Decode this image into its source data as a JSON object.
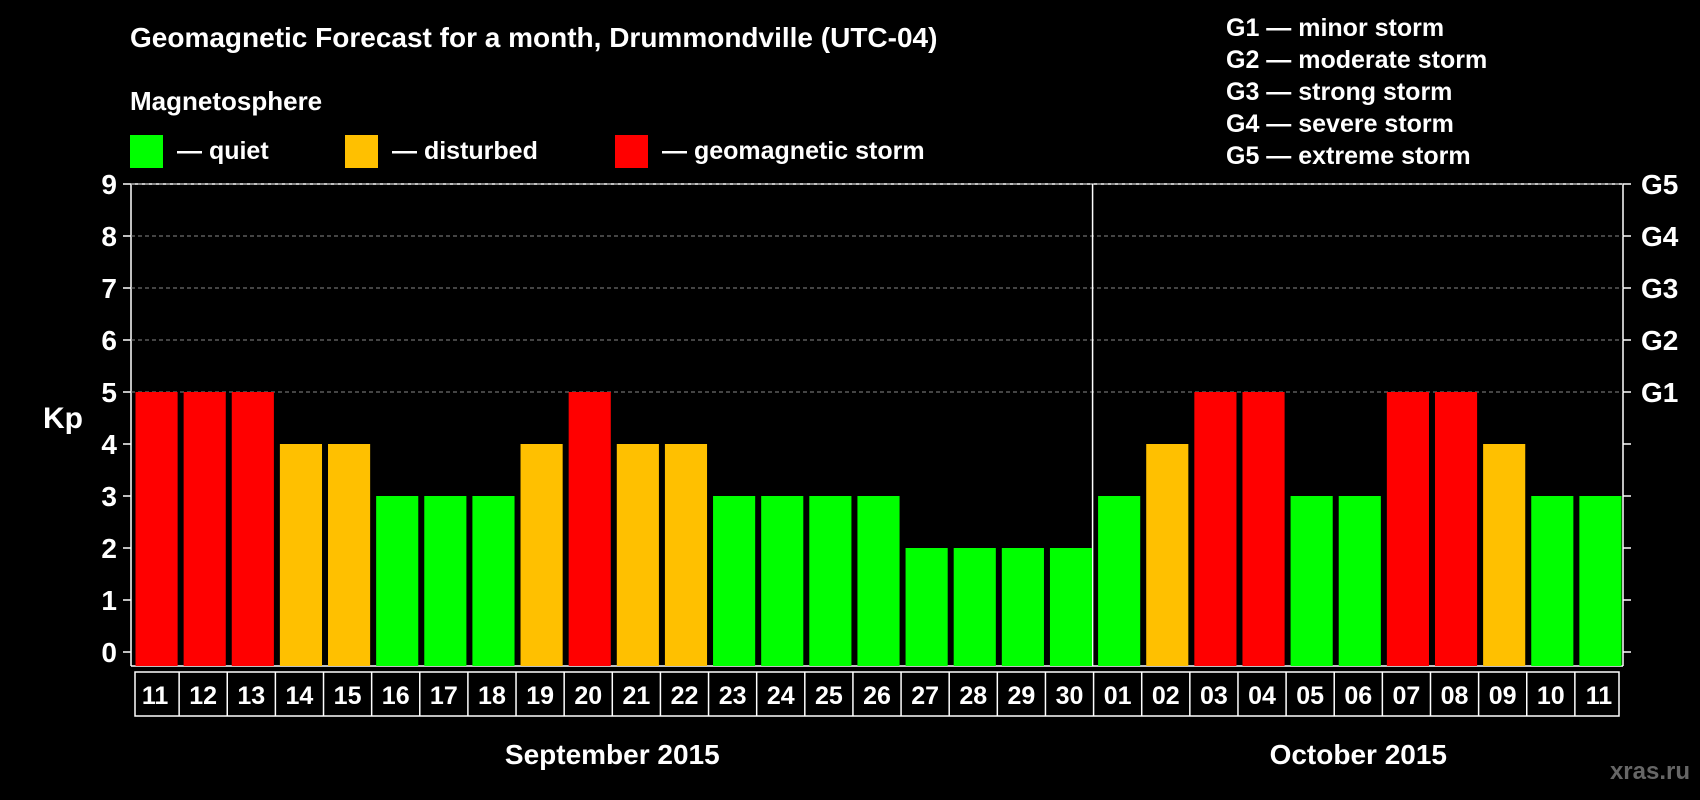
{
  "title": "Geomagnetic Forecast for a month, Drummondville (UTC-04)",
  "magnetosphere_label": "Magnetosphere",
  "legend": [
    {
      "label": "— quiet",
      "color": "#00ff00"
    },
    {
      "label": "— disturbed",
      "color": "#ffc000"
    },
    {
      "label": "— geomagnetic storm",
      "color": "#ff0000"
    }
  ],
  "g_scale": [
    "G1 — minor storm",
    "G2 — moderate storm",
    "G3 — strong storm",
    "G4 — severe storm",
    "G5 — extreme storm"
  ],
  "watermark": "xras.ru",
  "chart_data": {
    "type": "bar",
    "ylabel": "Kp",
    "ylim": [
      0,
      9
    ],
    "yticks": [
      0,
      1,
      2,
      3,
      4,
      5,
      6,
      7,
      8,
      9
    ],
    "right_axis_labels": [
      {
        "kp": 5,
        "label": "G1"
      },
      {
        "kp": 6,
        "label": "G2"
      },
      {
        "kp": 7,
        "label": "G3"
      },
      {
        "kp": 8,
        "label": "G4"
      },
      {
        "kp": 9,
        "label": "G5"
      }
    ],
    "grid": "dashed horizontal at Kp 5–9",
    "categories": [
      "11",
      "12",
      "13",
      "14",
      "15",
      "16",
      "17",
      "18",
      "19",
      "20",
      "21",
      "22",
      "23",
      "24",
      "25",
      "26",
      "27",
      "28",
      "29",
      "30",
      "01",
      "02",
      "03",
      "04",
      "05",
      "06",
      "07",
      "08",
      "09",
      "10",
      "11"
    ],
    "values": [
      5,
      5,
      5,
      4,
      4,
      3,
      3,
      3,
      4,
      5,
      4,
      4,
      3,
      3,
      3,
      3,
      2,
      2,
      2,
      2,
      3,
      4,
      5,
      5,
      3,
      3,
      5,
      5,
      4,
      3,
      3
    ],
    "months": [
      {
        "label": "September 2015",
        "start_index": 0,
        "count": 20
      },
      {
        "label": "October 2015",
        "start_index": 20,
        "count": 11
      }
    ],
    "colors": {
      "quiet": "#00ff00",
      "disturbed": "#ffc000",
      "storm": "#ff0000"
    },
    "thresholds": {
      "disturbed_min": 4,
      "storm_min": 5
    }
  }
}
